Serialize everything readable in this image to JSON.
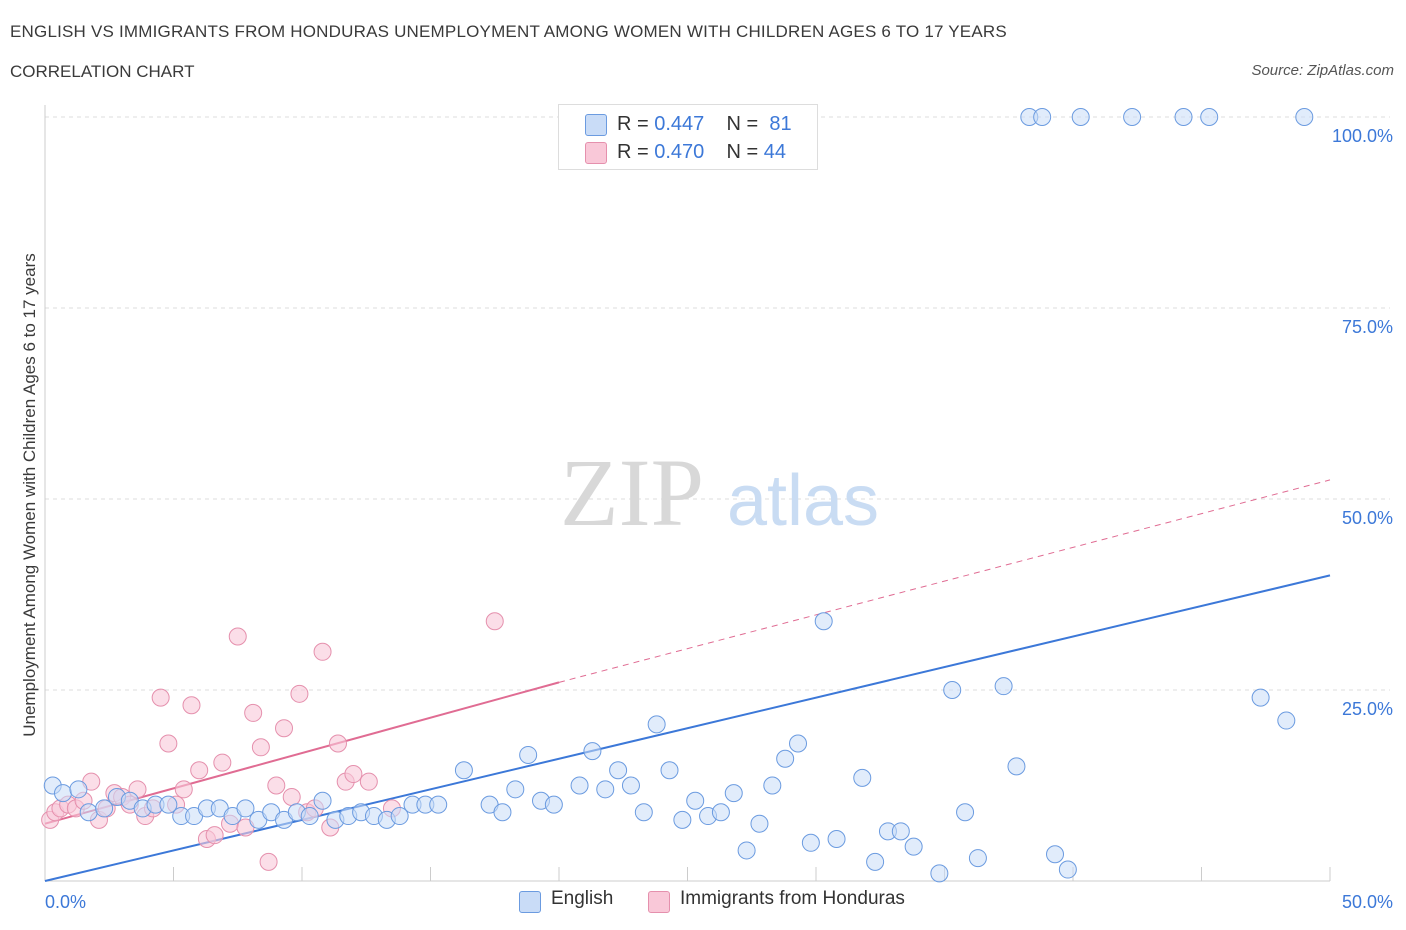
{
  "title": "ENGLISH VS IMMIGRANTS FROM HONDURAS UNEMPLOYMENT AMONG WOMEN WITH CHILDREN AGES 6 TO 17 YEARS",
  "subtitle": "CORRELATION CHART",
  "source": "Source: ZipAtlas.com",
  "watermark": {
    "zip": "ZIP",
    "atlas": "atlas"
  },
  "colors": {
    "english": "#3c78d8",
    "english_fill": "#c9dcf7",
    "honduras": "#e06c93",
    "honduras_fill": "#f9c8d8",
    "axis_text": "#3c78d8",
    "grid": "#dddddd"
  },
  "legend": {
    "english": {
      "r_label": "R = ",
      "r_value": "0.447",
      "n_label": "N = ",
      "n_value": "81"
    },
    "honduras": {
      "r_label": "R = ",
      "r_value": "0.470",
      "n_label": "N = ",
      "n_value": "44"
    }
  },
  "chart_data": {
    "type": "scatter",
    "title": "ENGLISH VS IMMIGRANTS FROM HONDURAS UNEMPLOYMENT AMONG WOMEN WITH CHILDREN AGES 6 TO 17 YEARS",
    "subtitle": "CORRELATION CHART",
    "xlabel": "",
    "ylabel": "Unemployment Among Women with Children Ages 6 to 17 years",
    "xlim": [
      0,
      50
    ],
    "ylim": [
      0,
      100
    ],
    "x_tick_labels": [
      "0.0%",
      "50.0%"
    ],
    "y_tick_labels": [
      "100.0%",
      "75.0%",
      "50.0%",
      "25.0%"
    ],
    "y_ticks": [
      100,
      75,
      50,
      25
    ],
    "grid": true,
    "legend_position": "top-center",
    "series": [
      {
        "name": "English",
        "r": 0.447,
        "n": 81,
        "trend": {
          "x": [
            0,
            50
          ],
          "y": [
            0,
            40
          ]
        },
        "points": [
          [
            0.3,
            12.5
          ],
          [
            0.7,
            11.5
          ],
          [
            1.3,
            12
          ],
          [
            1.7,
            9
          ],
          [
            2.3,
            9.5
          ],
          [
            2.8,
            11
          ],
          [
            3.3,
            10.5
          ],
          [
            3.8,
            9.5
          ],
          [
            4.3,
            10
          ],
          [
            4.8,
            10
          ],
          [
            5.3,
            8.5
          ],
          [
            5.8,
            8.5
          ],
          [
            6.3,
            9.5
          ],
          [
            6.8,
            9.5
          ],
          [
            7.3,
            8.5
          ],
          [
            7.8,
            9.5
          ],
          [
            8.3,
            8
          ],
          [
            8.8,
            9
          ],
          [
            9.3,
            8
          ],
          [
            9.8,
            9
          ],
          [
            10.3,
            8.5
          ],
          [
            10.8,
            10.5
          ],
          [
            11.3,
            8
          ],
          [
            11.8,
            8.5
          ],
          [
            12.3,
            9
          ],
          [
            12.8,
            8.5
          ],
          [
            13.3,
            8
          ],
          [
            13.8,
            8.5
          ],
          [
            14.3,
            10
          ],
          [
            14.8,
            10
          ],
          [
            15.3,
            10
          ],
          [
            16.3,
            14.5
          ],
          [
            17.3,
            10
          ],
          [
            17.8,
            9
          ],
          [
            18.3,
            12
          ],
          [
            18.8,
            16.5
          ],
          [
            19.3,
            10.5
          ],
          [
            19.8,
            10
          ],
          [
            20.8,
            12.5
          ],
          [
            21.3,
            17
          ],
          [
            21.8,
            12
          ],
          [
            22.3,
            14.5
          ],
          [
            22.8,
            12.5
          ],
          [
            23.3,
            9
          ],
          [
            23.8,
            20.5
          ],
          [
            24.3,
            14.5
          ],
          [
            24.8,
            8
          ],
          [
            25.3,
            10.5
          ],
          [
            25.8,
            8.5
          ],
          [
            26.3,
            9
          ],
          [
            26.8,
            11.5
          ],
          [
            27.3,
            4
          ],
          [
            27.8,
            7.5
          ],
          [
            28.3,
            12.5
          ],
          [
            28.8,
            16
          ],
          [
            29.3,
            18
          ],
          [
            29.8,
            5
          ],
          [
            30.3,
            34
          ],
          [
            30.8,
            5.5
          ],
          [
            31.8,
            13.5
          ],
          [
            32.3,
            2.5
          ],
          [
            32.8,
            6.5
          ],
          [
            33.3,
            6.5
          ],
          [
            33.8,
            4.5
          ],
          [
            34.8,
            1
          ],
          [
            35.3,
            25
          ],
          [
            35.8,
            9
          ],
          [
            36.3,
            3
          ],
          [
            37.3,
            25.5
          ],
          [
            37.8,
            15
          ],
          [
            38.3,
            100
          ],
          [
            38.8,
            100
          ],
          [
            39.3,
            3.5
          ],
          [
            39.8,
            1.5
          ],
          [
            40.3,
            100
          ],
          [
            42.3,
            100
          ],
          [
            44.3,
            100
          ],
          [
            45.3,
            100
          ],
          [
            47.3,
            24
          ],
          [
            48.3,
            21
          ],
          [
            49.0,
            100
          ]
        ]
      },
      {
        "name": "Immigrants from Honduras",
        "r": 0.47,
        "n": 44,
        "trend": {
          "x": [
            0,
            20
          ],
          "y": [
            7.5,
            26
          ]
        },
        "trend_dashed": {
          "x": [
            20,
            50
          ],
          "y": [
            26,
            52.5
          ]
        },
        "points": [
          [
            0.2,
            8
          ],
          [
            0.4,
            9
          ],
          [
            0.6,
            9.5
          ],
          [
            0.9,
            10
          ],
          [
            1.2,
            9.5
          ],
          [
            1.5,
            10.5
          ],
          [
            1.8,
            13
          ],
          [
            2.1,
            8
          ],
          [
            2.4,
            9.5
          ],
          [
            2.7,
            11.5
          ],
          [
            3,
            11
          ],
          [
            3.3,
            10
          ],
          [
            3.6,
            12
          ],
          [
            3.9,
            8.5
          ],
          [
            4.2,
            9.5
          ],
          [
            4.5,
            24
          ],
          [
            4.8,
            18
          ],
          [
            5.1,
            10
          ],
          [
            5.4,
            12
          ],
          [
            5.7,
            23
          ],
          [
            6,
            14.5
          ],
          [
            6.3,
            5.5
          ],
          [
            6.6,
            6
          ],
          [
            6.9,
            15.5
          ],
          [
            7.2,
            7.5
          ],
          [
            7.5,
            32
          ],
          [
            7.8,
            7
          ],
          [
            8.1,
            22
          ],
          [
            8.4,
            17.5
          ],
          [
            8.7,
            2.5
          ],
          [
            9,
            12.5
          ],
          [
            9.3,
            20
          ],
          [
            9.6,
            11
          ],
          [
            9.9,
            24.5
          ],
          [
            10.2,
            9
          ],
          [
            10.5,
            9.5
          ],
          [
            10.8,
            30
          ],
          [
            11.1,
            7
          ],
          [
            11.4,
            18
          ],
          [
            11.7,
            13
          ],
          [
            12,
            14
          ],
          [
            12.6,
            13
          ],
          [
            13.5,
            9.5
          ],
          [
            17.5,
            34
          ]
        ]
      }
    ]
  },
  "bottom_legend": {
    "english": "English",
    "honduras": "Immigrants from Honduras"
  }
}
